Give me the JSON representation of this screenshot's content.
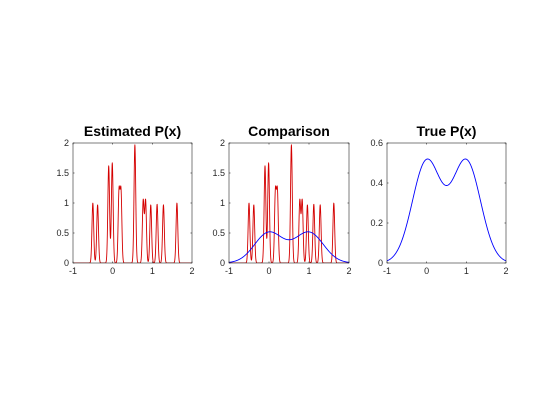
{
  "figure": {
    "background": "#ffffff"
  },
  "chart_data": [
    {
      "type": "line",
      "title": "Estimated P(x)",
      "xlabel": "",
      "ylabel": "",
      "xlim": [
        -1,
        2
      ],
      "ylim": [
        0,
        2
      ],
      "xticks": [
        -1,
        0,
        1,
        2
      ],
      "yticks": [
        0,
        0.5,
        1,
        1.5,
        2
      ],
      "xtick_labels": [
        "-1",
        "0",
        "1",
        "2"
      ],
      "ytick_labels": [
        "0",
        "0.5",
        "1",
        "1.5",
        "2"
      ],
      "grid": false,
      "series": [
        {
          "color": "#d40000",
          "kind": "peaks",
          "peaks": [
            [
              -0.5,
              1.0
            ],
            [
              -0.38,
              0.97
            ],
            [
              -0.1,
              1.62
            ],
            [
              -0.01,
              1.67
            ],
            [
              0.16,
              1.17
            ],
            [
              0.21,
              1.17
            ],
            [
              0.56,
              1.97
            ],
            [
              0.77,
              1.04
            ],
            [
              0.83,
              1.04
            ],
            [
              0.96,
              0.97
            ],
            [
              1.12,
              0.98
            ],
            [
              1.28,
              0.97
            ],
            [
              1.62,
              1.0
            ]
          ],
          "width": 0.022
        }
      ]
    },
    {
      "type": "line",
      "title": "Comparison",
      "xlabel": "",
      "ylabel": "",
      "xlim": [
        -1,
        2
      ],
      "ylim": [
        0,
        2
      ],
      "xticks": [
        -1,
        0,
        1,
        2
      ],
      "yticks": [
        0,
        0.5,
        1,
        1.5,
        2
      ],
      "xtick_labels": [
        "-1",
        "0",
        "1",
        "2"
      ],
      "ytick_labels": [
        "0",
        "0.5",
        "1",
        "1.5",
        "2"
      ],
      "grid": false,
      "series": [
        {
          "color": "#d40000",
          "kind": "peaks",
          "peaks": [
            [
              -0.5,
              1.0
            ],
            [
              -0.38,
              0.97
            ],
            [
              -0.1,
              1.62
            ],
            [
              -0.01,
              1.67
            ],
            [
              0.16,
              1.17
            ],
            [
              0.21,
              1.17
            ],
            [
              0.56,
              1.97
            ],
            [
              0.77,
              1.04
            ],
            [
              0.83,
              1.04
            ],
            [
              0.96,
              0.97
            ],
            [
              1.12,
              0.98
            ],
            [
              1.28,
              0.97
            ],
            [
              1.62,
              1.0
            ]
          ],
          "width": 0.022
        },
        {
          "color": "#0000ff",
          "kind": "bimodal",
          "components": [
            [
              0.0,
              0.52,
              0.36
            ],
            [
              1.0,
              0.52,
              0.36
            ]
          ],
          "scale": 0.52
        }
      ]
    },
    {
      "type": "line",
      "title": "True P(x)",
      "xlabel": "",
      "ylabel": "",
      "xlim": [
        -1,
        2
      ],
      "ylim": [
        0,
        0.6
      ],
      "xticks": [
        -1,
        0,
        1,
        2
      ],
      "yticks": [
        0,
        0.2,
        0.4,
        0.6
      ],
      "xtick_labels": [
        "-1",
        "0",
        "1",
        "2"
      ],
      "ytick_labels": [
        "0",
        "0.2",
        "0.4",
        "0.6"
      ],
      "grid": false,
      "series": [
        {
          "color": "#0000ff",
          "kind": "bimodal",
          "components": [
            [
              0.0,
              0.52,
              0.36
            ],
            [
              1.0,
              0.52,
              0.36
            ]
          ],
          "scale": 0.52
        }
      ]
    }
  ]
}
